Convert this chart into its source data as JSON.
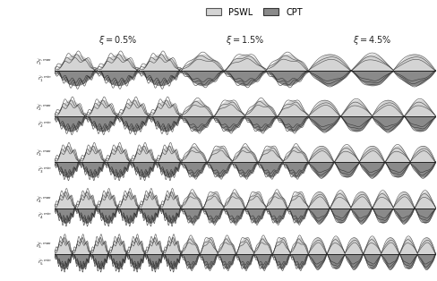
{
  "col_titles": [
    "\\xi = 0.5\\%",
    "\\xi = 1.5\\%",
    "\\xi = 4.5\\%"
  ],
  "row_labels_top": [
    "\\tilde{r}_1^{p,max}",
    "\\tilde{r}_2^{p,max}",
    "\\tilde{r}_3^{p,max}",
    "\\tilde{r}_4^{p,max}",
    "\\tilde{r}_5^{p,max}"
  ],
  "row_labels_bot": [
    "\\tilde{r}_1^{c,min}",
    "\\tilde{r}_2^{c,min}",
    "\\tilde{r}_3^{c,min}",
    "\\tilde{r}_4^{c,min}",
    "\\tilde{r}_5^{c,min}"
  ],
  "n_rows": 5,
  "n_cols": 3,
  "pswl_color": "#d4d4d4",
  "cpt_color": "#8a8a8a",
  "pswl_edge": "#404040",
  "cpt_edge": "#303030",
  "bg_color": "#ffffff",
  "legend_pswl_color": "#d4d4d4",
  "legend_cpt_color": "#8a8a8a"
}
